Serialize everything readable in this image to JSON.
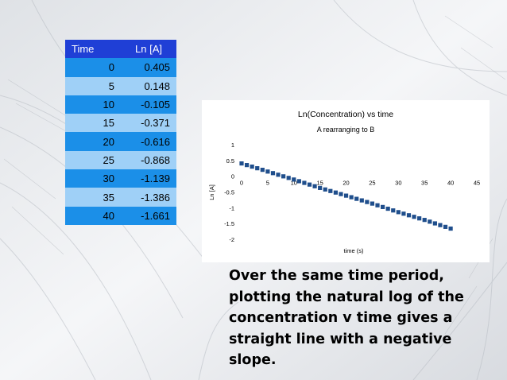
{
  "table": {
    "headers": [
      "Time",
      "Ln [A]"
    ],
    "rows": [
      [
        "0",
        "0.405"
      ],
      [
        "5",
        "0.148"
      ],
      [
        "10",
        "-0.105"
      ],
      [
        "15",
        "-0.371"
      ],
      [
        "20",
        "-0.616"
      ],
      [
        "25",
        "-0.868"
      ],
      [
        "30",
        "-1.139"
      ],
      [
        "35",
        "-1.386"
      ],
      [
        "40",
        "-1.661"
      ]
    ]
  },
  "chart_data": {
    "type": "scatter",
    "title": "Ln(Concentration) vs time",
    "subtitle": "A rearranging to B",
    "xlabel": "time (s)",
    "ylabel": "Ln [A]",
    "xlim": [
      0,
      45
    ],
    "ylim": [
      -2,
      1
    ],
    "xticks": [
      "0",
      "5",
      "10",
      "15",
      "20",
      "25",
      "30",
      "35",
      "40",
      "45"
    ],
    "yticks": [
      "1",
      "0.5",
      "0",
      "-0.5",
      "-1",
      "-1.5",
      "-2"
    ],
    "series": [
      {
        "color": "#1f4e8c",
        "x": [
          0,
          1,
          2,
          3,
          4,
          5,
          6,
          7,
          8,
          9,
          10,
          11,
          12,
          13,
          14,
          15,
          16,
          17,
          18,
          19,
          20,
          21,
          22,
          23,
          24,
          25,
          26,
          27,
          28,
          29,
          30,
          31,
          32,
          33,
          34,
          35,
          36,
          37,
          38,
          39,
          40
        ],
        "y": [
          0.405,
          0.354,
          0.304,
          0.253,
          0.203,
          0.148,
          0.098,
          0.047,
          -0.004,
          -0.054,
          -0.105,
          -0.158,
          -0.211,
          -0.265,
          -0.318,
          -0.371,
          -0.42,
          -0.469,
          -0.518,
          -0.567,
          -0.616,
          -0.666,
          -0.717,
          -0.767,
          -0.818,
          -0.868,
          -0.922,
          -0.976,
          -1.031,
          -1.085,
          -1.139,
          -1.188,
          -1.238,
          -1.287,
          -1.337,
          -1.386,
          -1.441,
          -1.496,
          -1.551,
          -1.606,
          -1.661
        ]
      }
    ],
    "grid": false,
    "legend": "none"
  },
  "caption": [
    "Over the same time period,",
    "plotting the natural log of the",
    "concentration v time gives a",
    "straight line with a negative",
    "slope."
  ]
}
